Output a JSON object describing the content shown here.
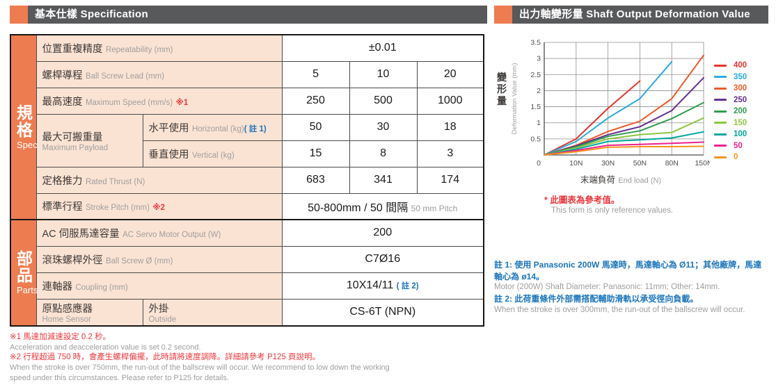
{
  "colors": {
    "accent_orange": "#ee7c51",
    "header_gray": "#58595b",
    "label_peach": "#fbe3d3",
    "note_red": "#e8383d",
    "note_blue": "#1b75bc",
    "muted_gray": "#9e9e9f"
  },
  "left": {
    "header": "基本仕樣 Specification",
    "table": {
      "groups": {
        "spec": {
          "zh": "規格",
          "en": "Spec"
        },
        "parts": {
          "zh": "部品",
          "en": "Parts"
        }
      },
      "rows": {
        "repeatability": {
          "zh": "位置重複精度",
          "en": "Repeatability (mm)",
          "value": "±0.01"
        },
        "ball_screw_lead": {
          "zh": "螺桿導程",
          "en": "Ball Screw Lead (mm)",
          "values": [
            "5",
            "10",
            "20"
          ]
        },
        "max_speed": {
          "zh": "最高速度",
          "en": "Maximum Speed (mm/s)",
          "note": "※1",
          "values": [
            "250",
            "500",
            "1000"
          ]
        },
        "max_payload": {
          "zh": "最大可搬重量",
          "en": "Maximum Payload",
          "horizontal": {
            "zh": "水平使用",
            "en": "Horizontal (kg)",
            "note": "( 註 1)",
            "values": [
              "50",
              "30",
              "18"
            ]
          },
          "vertical": {
            "zh": "垂直使用",
            "en": "Vertical (kg)",
            "values": [
              "15",
              "8",
              "3"
            ]
          }
        },
        "rated_thrust": {
          "zh": "定格推力",
          "en": "Rated Thrust (N)",
          "values": [
            "683",
            "341",
            "174"
          ]
        },
        "stroke_pitch": {
          "zh": "標準行程",
          "en": "Stroke Pitch (mm)",
          "note": "※2",
          "value_zh": "50-800mm / 50 間隔",
          "value_en": "50 mm Pitch"
        },
        "ac_servo": {
          "zh": "AC 伺服馬達容量",
          "en": "AC Servo Motor Output (W)",
          "value": "200"
        },
        "ball_screw_dia": {
          "zh": "滾珠螺桿外徑",
          "en": "Ball Screw Ø (mm)",
          "value": "C7Ø16"
        },
        "coupling": {
          "zh": "連軸器",
          "en": "Coupling (mm)",
          "value": "10X14/11",
          "note": "( 註 2)"
        },
        "home_sensor": {
          "zh": "原點感應器",
          "en": "Home Sensor",
          "sub_zh": "外掛",
          "sub_en": "Outside",
          "value": "CS-6T (NPN)"
        }
      }
    },
    "footnotes": {
      "fn1_zh": "※1 馬達加減速設定 0.2 秒。",
      "fn1_en": "Acceleration and deacceleration value is set 0.2 second.",
      "fn2_zh": "※2 行程超過 750 時，會產生螺桿偏擺，此時請將速度調降。詳細請參考 P125 頁說明。",
      "fn2_en": "When the stroke is over 750mm, the run-out of the ballscrew will occur. We recommend to low down the working speed under this circumstances. Please refer to P125 for details."
    }
  },
  "right": {
    "header": "出力軸變形量 Shaft Output Deformation Value",
    "xlabel_zh": "末端負荷",
    "xlabel_en": "End load (N)",
    "note_zh": "* 此圖表為參考值。",
    "note_en": "This form is only reference values.",
    "blue_notes": {
      "n1_zh": "註 1: 使用 Panasonic 200W 馬達時，馬達軸心為 Ø11；其他廠牌，馬達軸心為 ø14。",
      "n1_en": "Motor (200W) Shaft Diameter: Panasonic: 11mm; Other: 14mm.",
      "n2_zh": "註 2: 此荷重條件外部需搭配輔助滑軌以承受徑向負載。",
      "n2_en": "When the stroke is over 300mm, the run-out of the ballscrew will occur."
    }
  },
  "chart_data": {
    "type": "line",
    "title": "出力軸變形量 Shaft Output Deformation Value",
    "ylabel_zh": "變形量",
    "ylabel_en": "Deformation Value (mm)",
    "xlabel": "末端負荷 End load (N)",
    "x_categories": [
      "0",
      "10N",
      "30N",
      "50N",
      "80N",
      "150N"
    ],
    "ylim": [
      0,
      3.5
    ],
    "ytick_step": 0.5,
    "grid": true,
    "legend_position": "right",
    "series": [
      {
        "name": "400",
        "color": "#e8342c",
        "values": [
          0,
          0.5,
          1.45,
          2.3,
          null,
          null
        ]
      },
      {
        "name": "350",
        "color": "#29abe2",
        "values": [
          0,
          0.42,
          1.15,
          1.75,
          2.9,
          null
        ]
      },
      {
        "name": "300",
        "color": "#f15a29",
        "values": [
          0,
          0.3,
          0.73,
          1.05,
          1.75,
          3.1
        ]
      },
      {
        "name": "250",
        "color": "#66308f",
        "values": [
          0,
          0.28,
          0.63,
          0.88,
          1.38,
          2.4
        ]
      },
      {
        "name": "200",
        "color": "#2e9e4f",
        "values": [
          0,
          0.25,
          0.58,
          0.75,
          1.13,
          1.63
        ]
      },
      {
        "name": "150",
        "color": "#8cc63e",
        "values": [
          0,
          0.22,
          0.5,
          0.63,
          0.7,
          1.15
        ]
      },
      {
        "name": "100",
        "color": "#00a79d",
        "values": [
          0,
          0.18,
          0.42,
          0.47,
          0.53,
          0.72
        ]
      },
      {
        "name": "50",
        "color": "#ec218f",
        "values": [
          0,
          0.14,
          0.3,
          0.33,
          0.36,
          0.4
        ]
      },
      {
        "name": "0",
        "color": "#f7941e",
        "values": [
          0,
          0.1,
          0.24,
          0.26,
          0.26,
          0.27
        ]
      }
    ]
  }
}
